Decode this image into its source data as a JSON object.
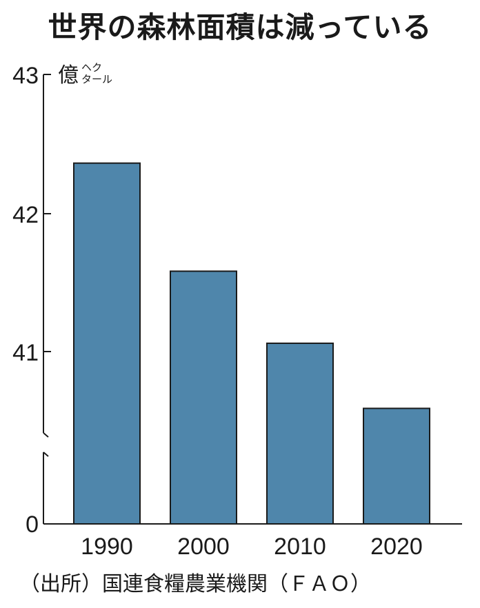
{
  "chart_data": {
    "type": "bar",
    "title": "世界の森林面積は減っている",
    "unit": {
      "main": "億",
      "sub_top": "ヘク",
      "sub_bottom": "タール"
    },
    "categories": [
      "1990",
      "2000",
      "2010",
      "2020"
    ],
    "values": [
      42.36,
      41.58,
      41.06,
      40.59
    ],
    "yticks": [
      "43",
      "42",
      "41",
      "0"
    ],
    "ylim": [
      40.0,
      43.0
    ],
    "axis_break": true,
    "bar_color": "#4f86ab",
    "source": "（出所）国連食糧農業機関（ＦＡＯ）"
  }
}
